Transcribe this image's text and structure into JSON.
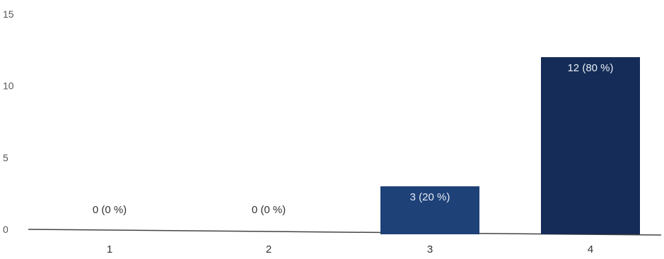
{
  "chart_data": {
    "type": "bar",
    "categories": [
      "1",
      "2",
      "3",
      "4"
    ],
    "values": [
      0,
      0,
      3,
      12
    ],
    "labels": [
      "0 (0 %)",
      "0 (0 %)",
      "3 (20 %)",
      "12 (80 %)"
    ],
    "yticks": [
      "0",
      "5",
      "10",
      "15"
    ],
    "ylim": [
      0,
      15
    ],
    "grid": false,
    "colors": [
      "#1d3b6d",
      "#1d3b6d",
      "#1e4178",
      "#142c57"
    ]
  }
}
